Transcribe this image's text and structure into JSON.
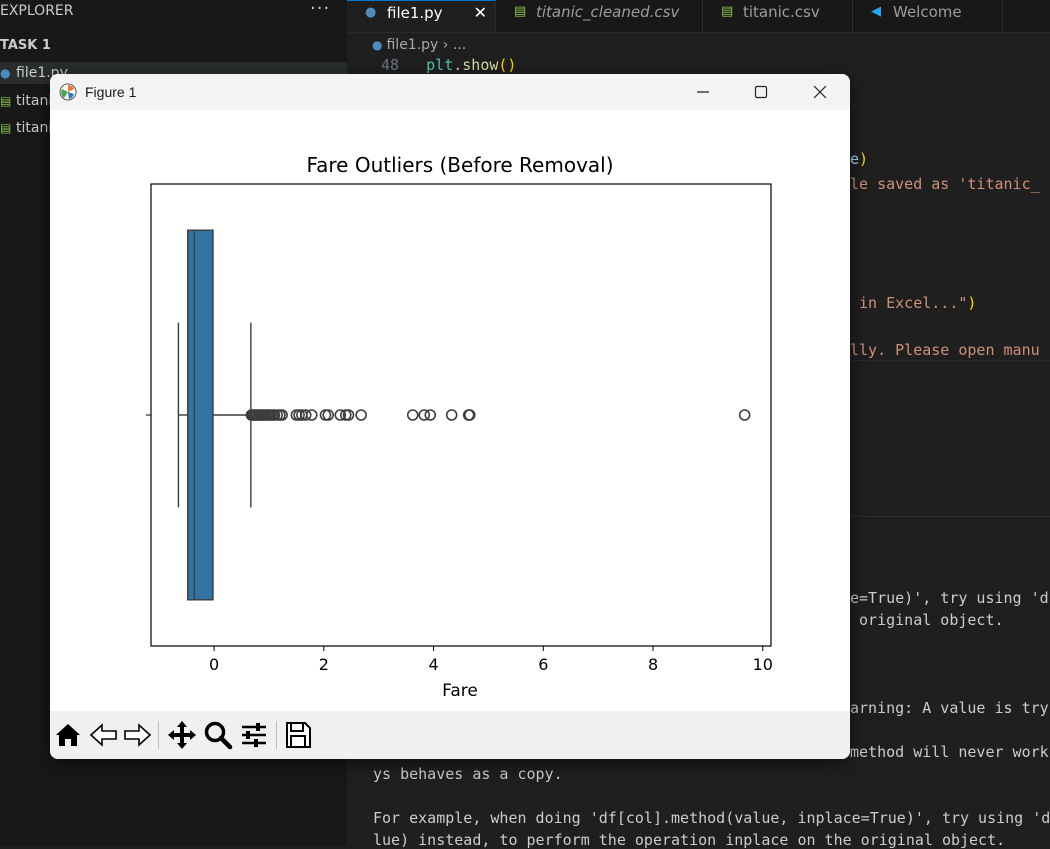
{
  "explorer": {
    "title": "EXPLORER",
    "more": "···",
    "section": "TASK 1",
    "items": [
      {
        "label": "file1.py",
        "icon": "python-file-icon"
      },
      {
        "label": "titanic_cleaned.csv",
        "icon": "csv-file-icon"
      },
      {
        "label": "titanic.csv",
        "icon": "csv-file-icon"
      }
    ]
  },
  "tabs": [
    {
      "label": "file1.py",
      "icon": "python-file-icon",
      "close": "✕"
    },
    {
      "label": "titanic_cleaned.csv",
      "icon": "csv-file-icon"
    },
    {
      "label": "titanic.csv",
      "icon": "csv-file-icon"
    },
    {
      "label": "Welcome",
      "icon": "vscode-logo-icon"
    }
  ],
  "breadcrumb": {
    "file": "file1.py",
    "sep": "›",
    "rest": "..."
  },
  "editor": {
    "line_number": "48",
    "line48_fn": "plt",
    "line48_rest": ".show",
    "line48_paren": "()",
    "frag1": "e)",
    "frag2": "le saved as 'titanic_",
    "frag3_str": " in Excel...\"",
    "frag3_paren": ")",
    "frag4": "lly. Please open manu"
  },
  "terminal": {
    "t1": "e=True)', try using 'df",
    "t2": " original object.",
    "t3": "arning: A value is try",
    "t4": "method will never work",
    "t5": "ys behaves as a copy.",
    "t6": "For example, when doing 'df[col].method(value, inplace=True)', try using 'df",
    "t7": "lue) instead, to perform the operation inplace on the original object."
  },
  "figure": {
    "window_title": "Figure 1",
    "toolbar": [
      "home-icon",
      "back-icon",
      "forward-icon",
      "pan-icon",
      "zoom-icon",
      "configure-subplots-icon",
      "save-icon"
    ]
  },
  "chart_data": {
    "type": "boxplot",
    "title": "Fare Outliers (Before Removal)",
    "xlabel": "Fare",
    "ylabel": "",
    "xlim": [
      -1.15,
      10.15
    ],
    "xticks": [
      0,
      2,
      4,
      6,
      8,
      10
    ],
    "orientation": "horizontal",
    "box_color": "#3274a1",
    "box": {
      "whisker_low": -0.65,
      "q1": -0.48,
      "median": -0.36,
      "q3": -0.02,
      "whisker_high": 0.67
    },
    "outliers": [
      0.68,
      0.7,
      0.72,
      0.74,
      0.77,
      0.8,
      0.82,
      0.85,
      0.88,
      0.9,
      0.93,
      0.96,
      1.0,
      1.03,
      1.07,
      1.1,
      1.15,
      1.2,
      1.24,
      1.5,
      1.55,
      1.6,
      1.67,
      1.78,
      2.03,
      2.08,
      2.3,
      2.4,
      2.45,
      2.68,
      3.62,
      3.83,
      3.94,
      4.33,
      4.64,
      4.66,
      9.67
    ],
    "grid": false
  }
}
